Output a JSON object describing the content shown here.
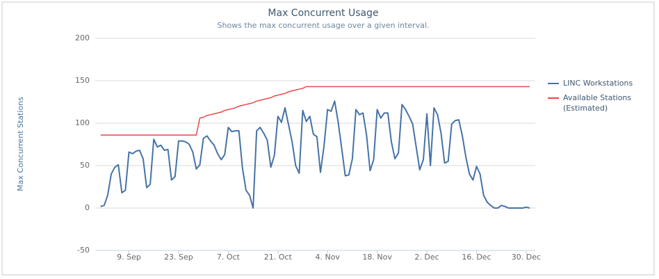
{
  "chart_data": {
    "type": "line",
    "title": "Max Concurrent Usage",
    "subtitle": "Shows the max concurrent usage over a given interval.",
    "y_label": "Max Concurrent Stations",
    "categories": [
      null,
      null,
      null,
      null,
      null,
      null,
      null,
      null,
      "9. Sep",
      null,
      null,
      null,
      null,
      null,
      null,
      null,
      null,
      null,
      null,
      null,
      null,
      null,
      "23. Sep",
      null,
      null,
      null,
      null,
      null,
      null,
      null,
      null,
      null,
      null,
      null,
      null,
      null,
      "7. Oct",
      null,
      null,
      null,
      null,
      null,
      null,
      null,
      null,
      null,
      null,
      null,
      null,
      null,
      "21. Oct",
      null,
      null,
      null,
      null,
      null,
      null,
      null,
      null,
      null,
      null,
      null,
      null,
      null,
      "4. Nov",
      null,
      null,
      null,
      null,
      null,
      null,
      null,
      null,
      null,
      null,
      null,
      null,
      null,
      "18. Nov",
      null,
      null,
      null,
      null,
      null,
      null,
      null,
      null,
      null,
      null,
      null,
      null,
      null,
      "2. Dec",
      null,
      null,
      null,
      null,
      null,
      null,
      null,
      null,
      null,
      null,
      null,
      null,
      null,
      "16. Dec",
      null,
      null,
      null,
      null,
      null,
      null,
      null,
      null,
      null,
      null,
      null,
      null,
      null,
      "30. Dec",
      null
    ],
    "series": [
      {
        "name": "LINC Workstations",
        "color": "#4572a7",
        "values": [
          2,
          3,
          15,
          40,
          48,
          51,
          18,
          21,
          66,
          64,
          67,
          68,
          58,
          24,
          28,
          81,
          72,
          74,
          68,
          69,
          33,
          37,
          79,
          79,
          78,
          75,
          66,
          46,
          51,
          82,
          85,
          79,
          74,
          64,
          57,
          63,
          95,
          90,
          91,
          91,
          47,
          21,
          15,
          0,
          91,
          95,
          88,
          80,
          48,
          62,
          108,
          101,
          118,
          98,
          78,
          50,
          41,
          115,
          102,
          108,
          87,
          84,
          42,
          73,
          116,
          114,
          126,
          101,
          70,
          38,
          39,
          58,
          116,
          110,
          112,
          86,
          44,
          57,
          116,
          106,
          112,
          112,
          78,
          58,
          65,
          122,
          116,
          108,
          99,
          72,
          45,
          57,
          111,
          50,
          118,
          110,
          88,
          53,
          55,
          99,
          103,
          104,
          85,
          60,
          40,
          33,
          49,
          40,
          15,
          7,
          3,
          0,
          0,
          3,
          2,
          0,
          0,
          0,
          0,
          0,
          1,
          0
        ]
      },
      {
        "name": "Available Stations (Estimated)",
        "color": "#e8474a",
        "values": [
          86,
          86,
          86,
          86,
          86,
          86,
          86,
          86,
          86,
          86,
          86,
          86,
          86,
          86,
          86,
          86,
          86,
          86,
          86,
          86,
          86,
          86,
          86,
          86,
          86,
          86,
          86,
          86,
          106,
          107,
          109,
          110,
          111,
          112,
          113,
          115,
          116,
          117,
          118,
          120,
          121,
          122,
          123,
          124,
          126,
          127,
          128,
          129,
          130,
          132,
          133,
          134,
          135,
          137,
          138,
          139,
          140,
          141,
          143,
          143,
          143,
          143,
          143,
          143,
          143,
          143,
          143,
          143,
          143,
          143,
          143,
          143,
          143,
          143,
          143,
          143,
          143,
          143,
          143,
          143,
          143,
          143,
          143,
          143,
          143,
          143,
          143,
          143,
          143,
          143,
          143,
          143,
          143,
          143,
          143,
          143,
          143,
          143,
          143,
          143,
          143,
          143,
          143,
          143,
          143,
          143,
          143,
          143,
          143,
          143,
          143,
          143,
          143,
          143,
          143,
          143,
          143,
          143,
          143,
          143,
          143,
          143
        ]
      }
    ],
    "ylim": [
      -50,
      200
    ],
    "yticks": [
      -50,
      0,
      50,
      100,
      150,
      200
    ],
    "grid": true,
    "legend": "right"
  }
}
